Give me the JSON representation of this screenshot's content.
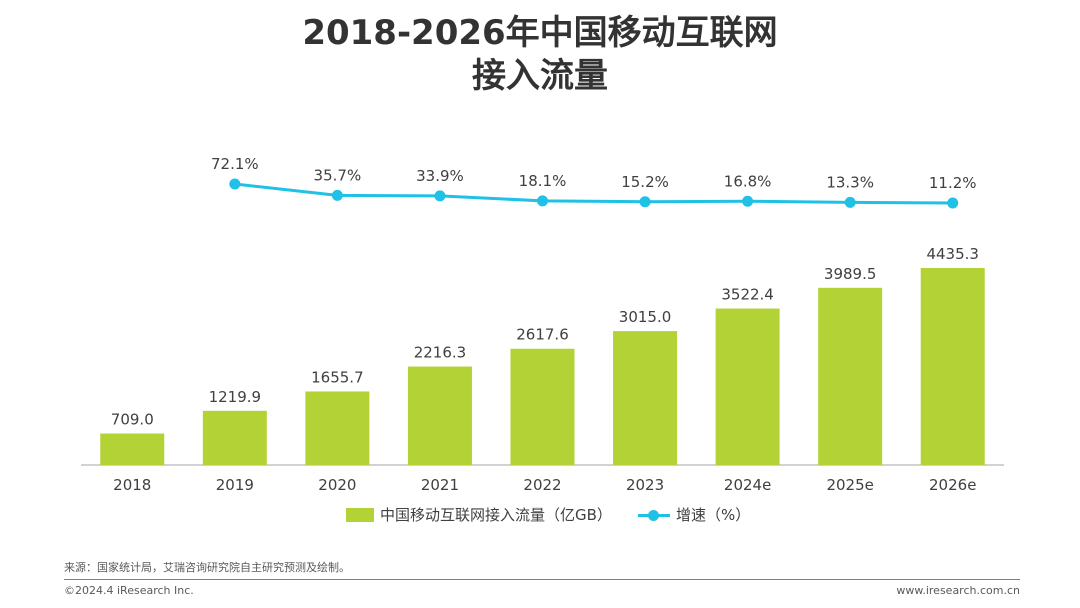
{
  "title": {
    "line1": "2018-2026年中国移动互联网",
    "line2": "接入流量"
  },
  "colors": {
    "bar": "#b2d235",
    "line": "#1fc1e6",
    "axis": "#a6a6a6",
    "text": "#404040"
  },
  "legend": {
    "bar_label": "中国移动互联网接入流量（亿GB）",
    "line_label": "增速（%）"
  },
  "chart_data": {
    "type": "bar",
    "categories": [
      "2018",
      "2019",
      "2020",
      "2021",
      "2022",
      "2023",
      "2024e",
      "2025e",
      "2026e"
    ],
    "series": [
      {
        "name": "中国移动互联网接入流量（亿GB）",
        "type": "bar",
        "values": [
          709.0,
          1219.9,
          1655.7,
          2216.3,
          2617.6,
          3015.0,
          3522.4,
          3989.5,
          4435.3
        ],
        "labels": [
          "709.0",
          "1219.9",
          "1655.7",
          "2216.3",
          "2617.6",
          "3015.0",
          "3522.4",
          "3989.5",
          "4435.3"
        ]
      },
      {
        "name": "增速（%）",
        "type": "line",
        "values": [
          null,
          72.1,
          35.7,
          33.9,
          18.1,
          15.2,
          16.8,
          13.3,
          11.2
        ],
        "labels": [
          "",
          "72.1%",
          "35.7%",
          "33.9%",
          "18.1%",
          "15.2%",
          "16.8%",
          "13.3%",
          "11.2%"
        ]
      }
    ],
    "title": "2018-2026年中国移动互联网接入流量",
    "xlabel": "",
    "ylabel": "",
    "grid": false,
    "legend_position": "bottom"
  },
  "footer": {
    "source": "来源：国家统计局，艾瑞咨询研究院自主研究预测及绘制。",
    "copyright": "©2024.4 iResearch Inc.",
    "website": "www.iresearch.com.cn"
  }
}
